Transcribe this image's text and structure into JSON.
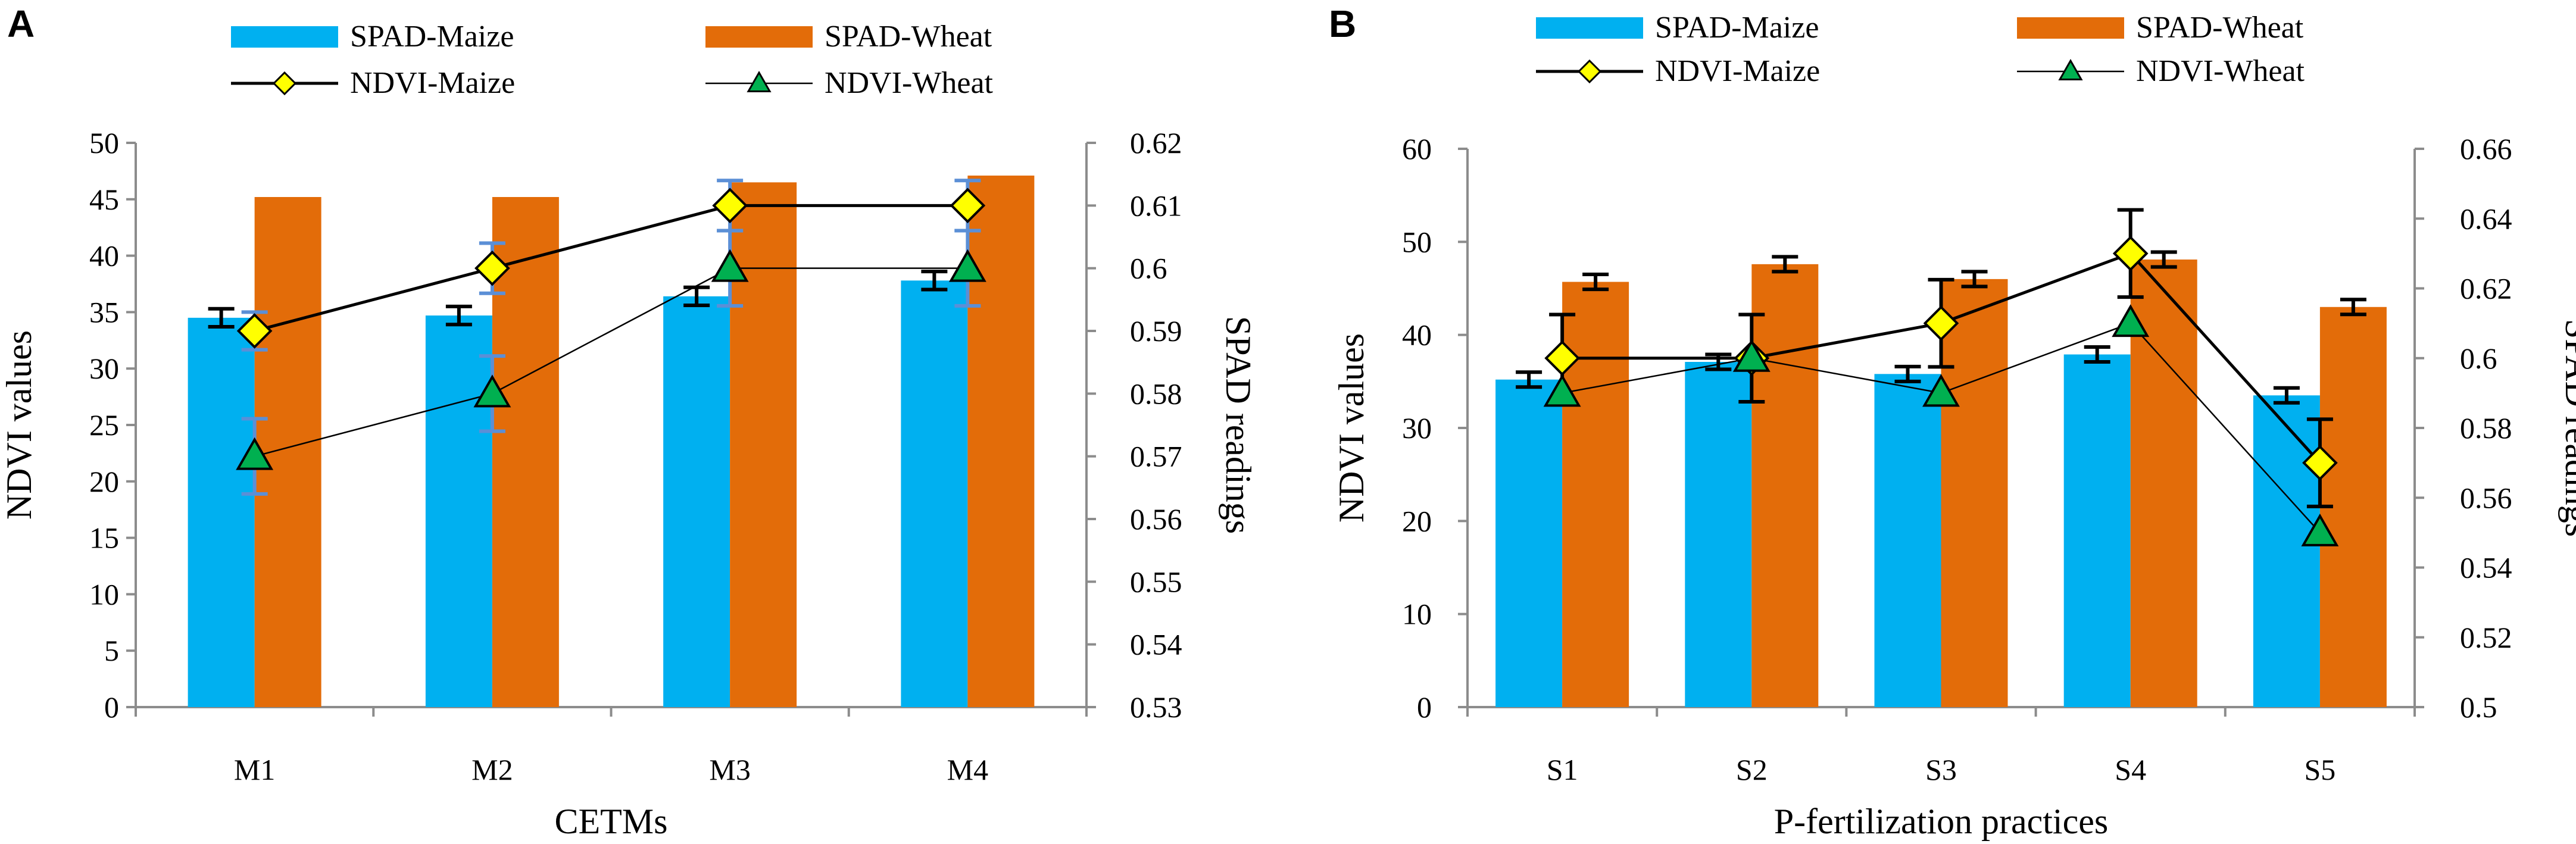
{
  "chart_data": [
    {
      "panel": "A",
      "type": "bar+line",
      "xlabel": "CETMs",
      "ylabel": "NDVI values",
      "y2label": "SPAD readings",
      "categories": [
        "M1",
        "M2",
        "M3",
        "M4"
      ],
      "ylim": [
        0,
        50
      ],
      "yticks": [
        0,
        5,
        10,
        15,
        20,
        25,
        30,
        35,
        40,
        45,
        50
      ],
      "y2lim": [
        0.53,
        0.62
      ],
      "y2ticks": [
        "0.53",
        "0.54",
        "0.55",
        "0.56",
        "0.57",
        "0.58",
        "0.59",
        "0.6",
        "0.61",
        "0.62"
      ],
      "bars": [
        {
          "name": "SPAD-Maize",
          "color": "#00b0f0",
          "values": [
            34.5,
            34.7,
            36.4,
            37.8
          ],
          "err": [
            0.8,
            0.8,
            0.8,
            0.8
          ]
        },
        {
          "name": "SPAD-Wheat",
          "color": "#e36c09",
          "values": [
            45.2,
            45.2,
            46.5,
            47.1
          ],
          "err": [
            0,
            0,
            0,
            0
          ]
        }
      ],
      "lines": [
        {
          "name": "NDVI-Maize",
          "marker": "diamond",
          "color": "#ffff00",
          "errColor": "#5b8fd6",
          "values": [
            0.59,
            0.6,
            0.61,
            0.61
          ],
          "err": [
            0.003,
            0.004,
            0.004,
            0.004
          ]
        },
        {
          "name": "NDVI-Wheat",
          "marker": "triangle",
          "color": "#00b050",
          "errColor": "#5b8fd6",
          "values": [
            0.57,
            0.58,
            0.6,
            0.6
          ],
          "err": [
            0.006,
            0.006,
            0.006,
            0.006
          ]
        }
      ]
    },
    {
      "panel": "B",
      "type": "bar+line",
      "xlabel": "P-fertilization practices",
      "ylabel": "NDVI values",
      "y2label": "SPAD readings",
      "categories": [
        "S1",
        "S2",
        "S3",
        "S4",
        "S5"
      ],
      "ylim": [
        0,
        60
      ],
      "yticks": [
        0,
        10,
        20,
        30,
        40,
        50,
        60
      ],
      "y2lim": [
        0.5,
        0.66
      ],
      "y2ticks": [
        "0.5",
        "0.52",
        "0.54",
        "0.56",
        "0.58",
        "0.6",
        "0.62",
        "0.64",
        "0.66"
      ],
      "bars": [
        {
          "name": "SPAD-Maize",
          "color": "#00b0f0",
          "values": [
            35.2,
            37.1,
            35.8,
            37.9,
            33.5
          ],
          "err": [
            0.8,
            0.8,
            0.8,
            0.8,
            0.8
          ]
        },
        {
          "name": "SPAD-Wheat",
          "color": "#e36c09",
          "values": [
            45.7,
            47.6,
            46.0,
            48.1,
            43.0
          ],
          "err": [
            0.8,
            0.8,
            0.8,
            0.8,
            0.8
          ]
        }
      ],
      "lines": [
        {
          "name": "NDVI-Maize",
          "marker": "diamond",
          "color": "#ffff00",
          "errColor": "#000000",
          "values": [
            0.6,
            0.6,
            0.61,
            0.63,
            0.57
          ],
          "err": [
            0.0125,
            0.0125,
            0.0125,
            0.0125,
            0.0125
          ]
        },
        {
          "name": "NDVI-Wheat",
          "marker": "triangle",
          "color": "#00b050",
          "errColor": "#000000",
          "values": [
            0.59,
            0.6,
            0.59,
            0.61,
            0.55
          ],
          "err": [
            0,
            0,
            0,
            0,
            0
          ]
        }
      ]
    }
  ]
}
